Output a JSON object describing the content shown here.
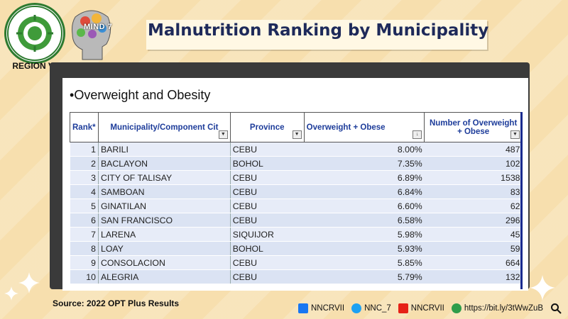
{
  "logos": {
    "nnc_ring_text": "NATIONAL NUTRITION COUNCIL",
    "nnc_year": "1974",
    "region": "REGION VII",
    "mind_text": "MIND 7"
  },
  "title": "Malnutrition Ranking by Municipality",
  "bullet": "Overweight and Obesity",
  "table": {
    "headers": [
      "Rank*",
      "Municipality/Component Cit",
      "Province",
      "Overweight +  Obese",
      "Number of Overweight + Obese"
    ],
    "rows": [
      {
        "rank": "1",
        "muni": "BARILI",
        "prov": "CEBU",
        "pct": "8.00%",
        "num": "487"
      },
      {
        "rank": "2",
        "muni": "BACLAYON",
        "prov": "BOHOL",
        "pct": "7.35%",
        "num": "102"
      },
      {
        "rank": "3",
        "muni": "CITY OF TALISAY",
        "prov": "CEBU",
        "pct": "6.89%",
        "num": "1538"
      },
      {
        "rank": "4",
        "muni": "SAMBOAN",
        "prov": "CEBU",
        "pct": "6.84%",
        "num": "83"
      },
      {
        "rank": "5",
        "muni": "GINATILAN",
        "prov": "CEBU",
        "pct": "6.60%",
        "num": "62"
      },
      {
        "rank": "6",
        "muni": "SAN FRANCISCO",
        "prov": "CEBU",
        "pct": "6.58%",
        "num": "296"
      },
      {
        "rank": "7",
        "muni": "LARENA",
        "prov": "SIQUIJOR",
        "pct": "5.98%",
        "num": "45"
      },
      {
        "rank": "8",
        "muni": "LOAY",
        "prov": "BOHOL",
        "pct": "5.93%",
        "num": "59"
      },
      {
        "rank": "9",
        "muni": "CONSOLACION",
        "prov": "CEBU",
        "pct": "5.85%",
        "num": "664"
      },
      {
        "rank": "10",
        "muni": "ALEGRIA",
        "prov": "CEBU",
        "pct": "5.79%",
        "num": "132"
      }
    ]
  },
  "source": "Source: 2022 OPT Plus Results",
  "social": {
    "facebook": "NNCRVII",
    "twitter": "NNC_7",
    "youtube": "NNCRVII",
    "link": "https://bit.ly/3tWwZuB"
  },
  "colors": {
    "background": "#f7dfae",
    "title_text": "#1e2a5a",
    "header_text": "#1d3c9a",
    "row_fill": "#dbe3f3",
    "frame": "#3a3a3a"
  }
}
